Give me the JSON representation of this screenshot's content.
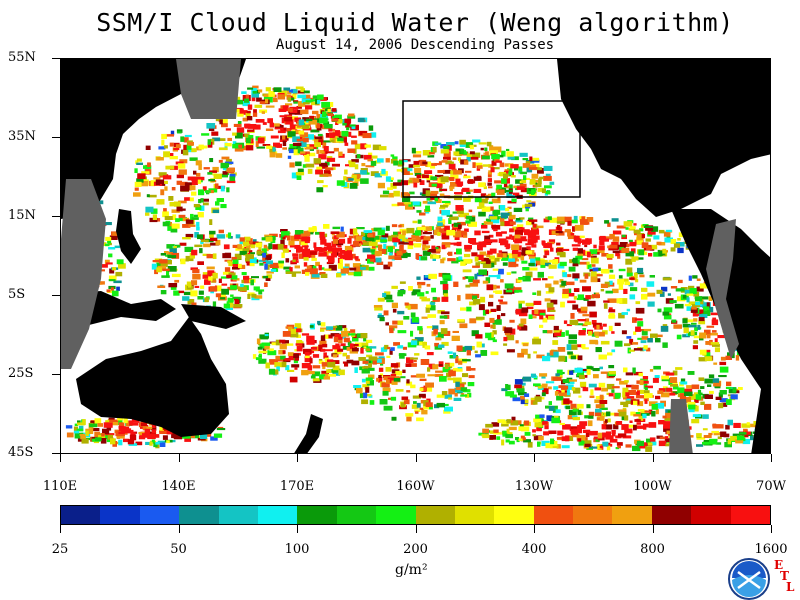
{
  "title": "SSM/I Cloud Liquid Water (Weng algorithm)",
  "subtitle": "August 14, 2006  Descending Passes",
  "lat_labels": [
    "55N",
    "35N",
    "15N",
    "5S",
    "25S",
    "45S"
  ],
  "lon_labels": [
    "110E",
    "140E",
    "170E",
    "160W",
    "130W",
    "100W",
    "70W"
  ],
  "colorbar": {
    "colors": [
      "#0a1f8a",
      "#0a34c8",
      "#1a5af0",
      "#0e9090",
      "#14c4c4",
      "#10f0f0",
      "#0a9a0a",
      "#14c814",
      "#14f014",
      "#b0b000",
      "#e0e000",
      "#ffff10",
      "#f05010",
      "#f07810",
      "#f0a010",
      "#900000",
      "#d00000",
      "#f81010"
    ],
    "tick_labels": [
      "25",
      "50",
      "100",
      "200",
      "400",
      "800",
      "1600"
    ]
  },
  "units": "g/m²",
  "logo": {
    "name": "NOAA",
    "side_text": [
      "E",
      "T",
      "L"
    ]
  },
  "map": {
    "land_color": "#000000",
    "no_data_color": "#606060",
    "background": "#ffffff",
    "highlight_box": "black rectangle, NE Pacific"
  }
}
